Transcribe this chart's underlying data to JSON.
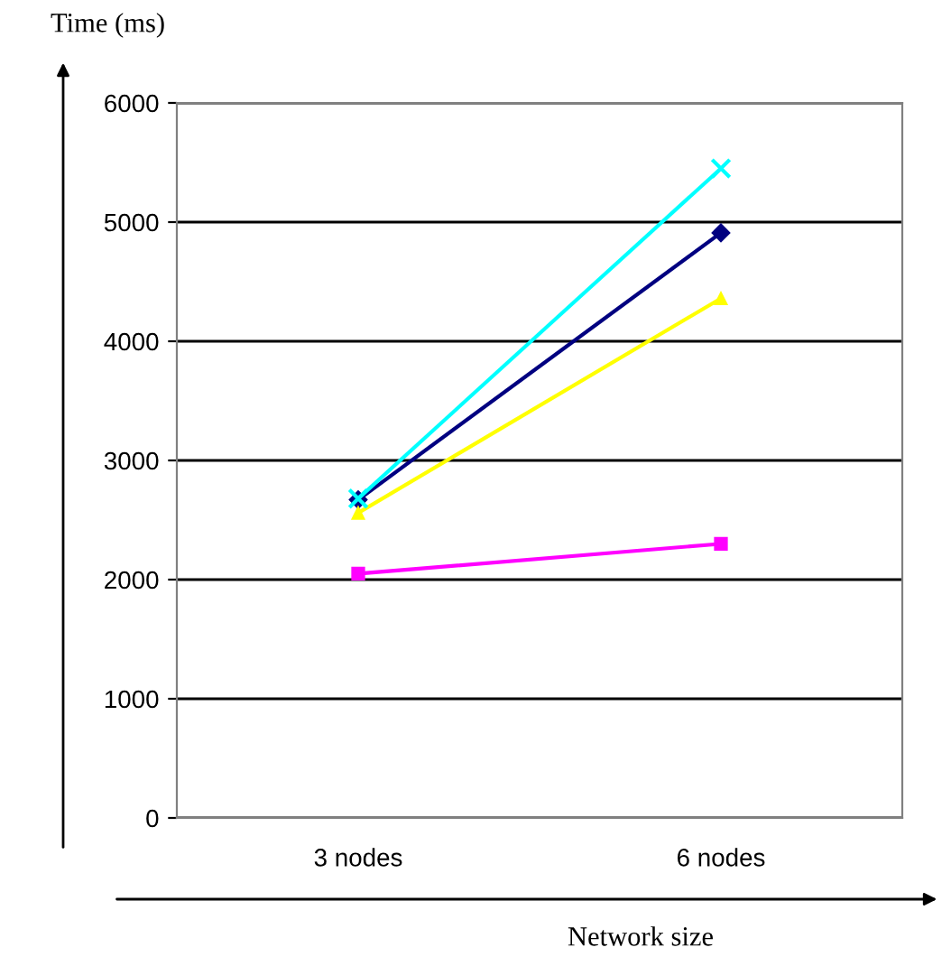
{
  "chart_data": {
    "type": "line",
    "xlabel": "Network size",
    "ylabel": "Time (ms)",
    "categories": [
      "3 nodes",
      "6 nodes"
    ],
    "series": [
      {
        "color": "#000080",
        "marker": "diamond",
        "values": [
          2670,
          4910
        ]
      },
      {
        "color": "#ff00ff",
        "marker": "square",
        "values": [
          2050,
          2300
        ]
      },
      {
        "color": "#ffff00",
        "marker": "triangle",
        "values": [
          2560,
          4360
        ]
      },
      {
        "color": "#00ffff",
        "marker": "cross",
        "values": [
          2680,
          5450
        ]
      }
    ],
    "ylim": [
      0,
      6000
    ],
    "yticks": [
      0,
      1000,
      2000,
      3000,
      4000,
      5000,
      6000
    ],
    "grid": "y",
    "legend": false
  }
}
